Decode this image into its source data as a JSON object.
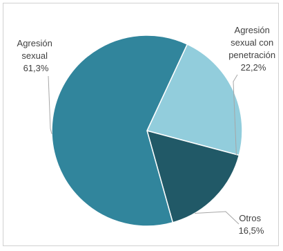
{
  "chart_data": {
    "type": "pie",
    "title": "",
    "slices": [
      {
        "name": "Agresión sexual con penetración",
        "value": 22.2,
        "value_label": "22,2%",
        "label_lines": [
          "Agresión",
          "sexual con",
          "penetración"
        ],
        "color": "#92cddc"
      },
      {
        "name": "Otros",
        "value": 16.5,
        "value_label": "16,5%",
        "label_lines": [
          "Otros"
        ],
        "color": "#215967"
      },
      {
        "name": "Agresión sexual",
        "value": 61.3,
        "value_label": "61,3%",
        "label_lines": [
          "Agresión",
          "sexual"
        ],
        "color": "#31859c"
      }
    ],
    "start_angle_deg": 25,
    "direction": "clockwise",
    "labels_outside": true,
    "leader_line_color": "#a6a6a6"
  }
}
